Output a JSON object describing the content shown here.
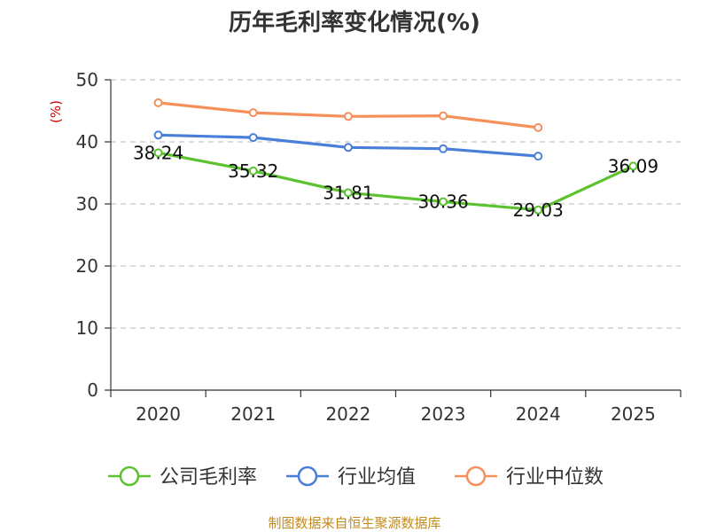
{
  "chart_data": {
    "type": "line",
    "title": "历年毛利率变化情况(%)",
    "ylabel": "(%)",
    "xlabel": "",
    "categories": [
      "2020",
      "2021",
      "2022",
      "2023",
      "2024",
      "2025"
    ],
    "ylim": [
      0,
      50
    ],
    "yticks": [
      0,
      10,
      20,
      30,
      40,
      50
    ],
    "grid": true,
    "legend_position": "bottom",
    "series": [
      {
        "name": "公司毛利率",
        "color": "#5cc22f",
        "values": [
          38.24,
          35.32,
          31.81,
          30.36,
          29.03,
          36.09
        ],
        "labels": [
          "38.24",
          "35.32",
          "31.81",
          "30.36",
          "29.03",
          "36.09"
        ],
        "show_labels": true
      },
      {
        "name": "行业均值",
        "color": "#4a7fd9",
        "values": [
          41.1,
          40.7,
          39.1,
          38.9,
          37.7,
          null
        ],
        "show_labels": false
      },
      {
        "name": "行业中位数",
        "color": "#f6905a",
        "values": [
          46.3,
          44.7,
          44.1,
          44.2,
          42.3,
          null
        ],
        "show_labels": false
      }
    ],
    "source": "制图数据来自恒生聚源数据库"
  }
}
